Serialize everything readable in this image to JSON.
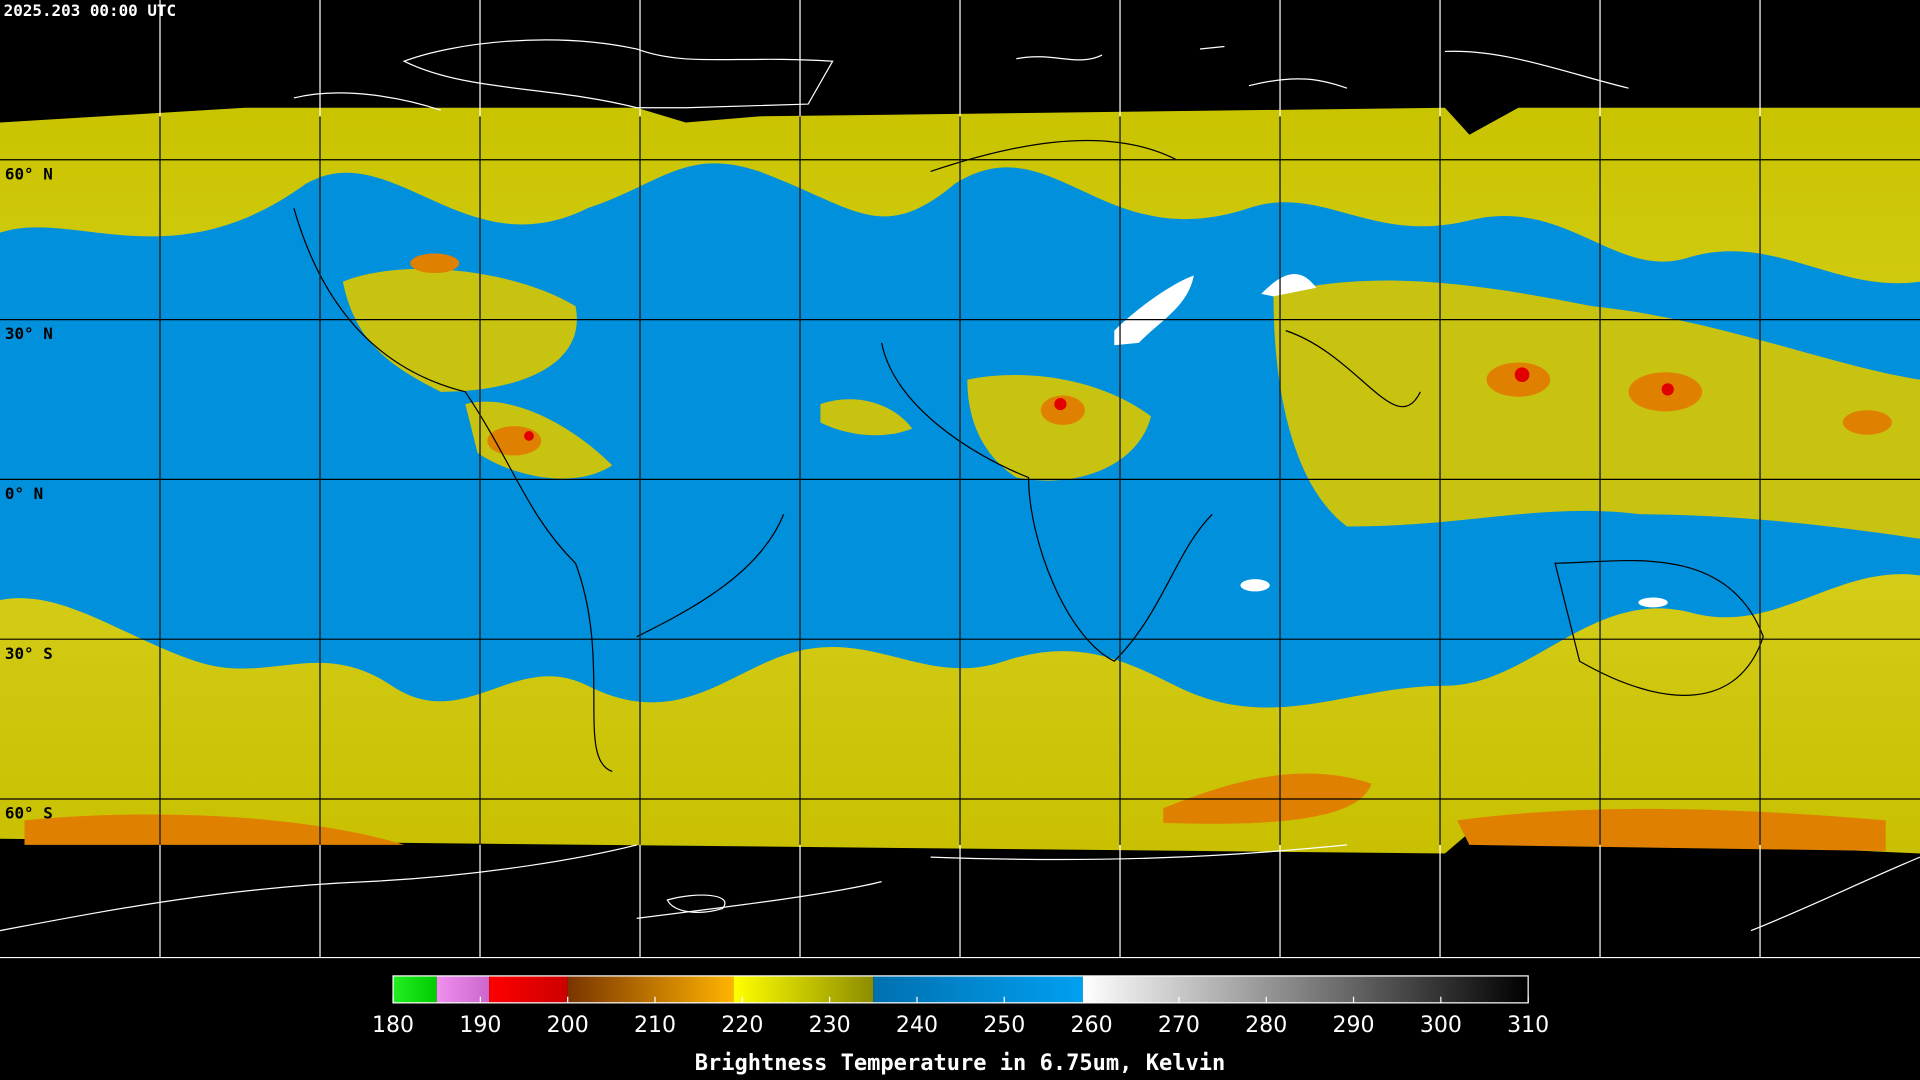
{
  "title": "2025.203 00:00 UTC",
  "lat_labels": [
    "60° N",
    "30° N",
    "0° N",
    "30° S",
    "60° S"
  ],
  "colorbar": {
    "label": "Brightness Temperature in 6.75um, Kelvin",
    "lim": [
      180,
      310
    ],
    "ticks": [
      180,
      190,
      200,
      210,
      220,
      230,
      240,
      250,
      260,
      270,
      280,
      290,
      300,
      310
    ],
    "segments": [
      {
        "from": 180,
        "to": 185,
        "colors": [
          "#22ee22",
          "#00cc00"
        ]
      },
      {
        "from": 185,
        "to": 191,
        "colors": [
          "#f090f0",
          "#cc66cc"
        ]
      },
      {
        "from": 191,
        "to": 200,
        "colors": [
          "#ff0000",
          "#cc0000"
        ]
      },
      {
        "from": 200,
        "to": 219,
        "colors": [
          "#7a3400",
          "#ffb400"
        ]
      },
      {
        "from": 219,
        "to": 235,
        "colors": [
          "#ffff00",
          "#8c8c00"
        ]
      },
      {
        "from": 235,
        "to": 259,
        "colors": [
          "#0070b0",
          "#00a0f0"
        ]
      },
      {
        "from": 259,
        "to": 310,
        "colors": [
          "#ffffff",
          "#000000"
        ]
      }
    ]
  }
}
